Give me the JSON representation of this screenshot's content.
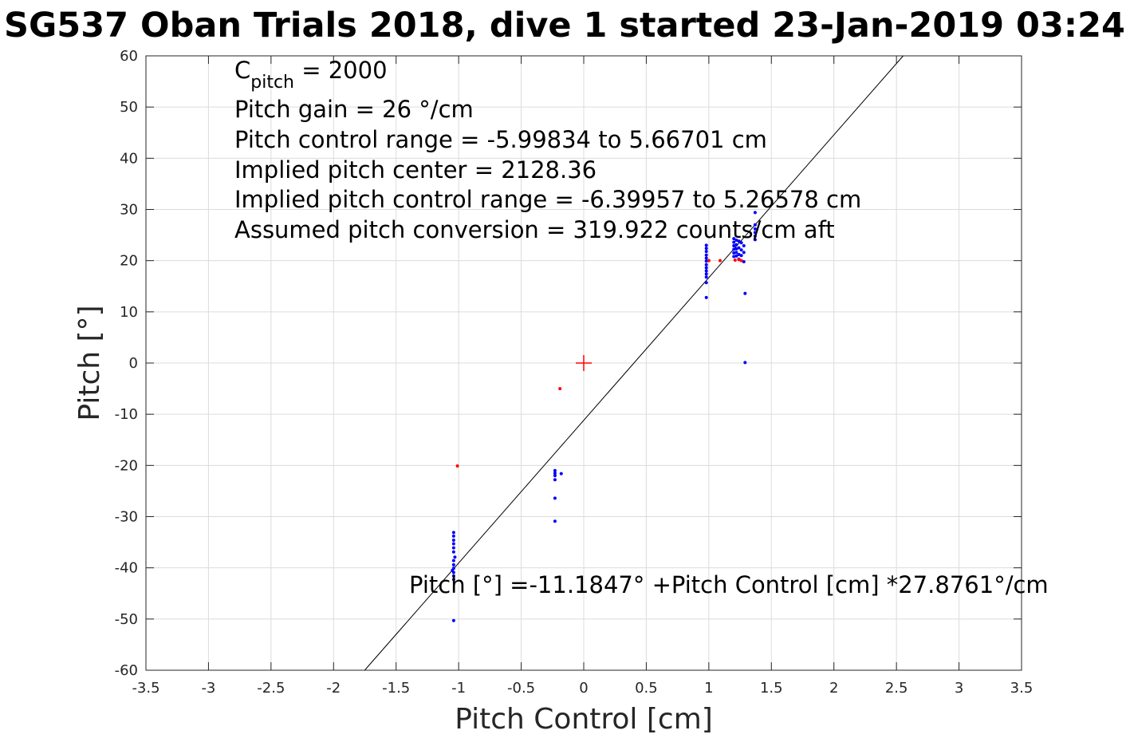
{
  "chart_data": {
    "type": "scatter",
    "title": "SG537 Oban Trials 2018, dive 1 started 23-Jan-2019 03:24",
    "xlabel": "Pitch Control [cm]",
    "ylabel": "Pitch [°]",
    "xlim": [
      -3.5,
      3.5
    ],
    "ylim": [
      -60,
      60
    ],
    "grid": true,
    "x_ticks": [
      "-3.5",
      "-3",
      "-2.5",
      "-2",
      "-1.5",
      "-1",
      "-0.5",
      "0",
      "0.5",
      "1",
      "1.5",
      "2",
      "2.5",
      "3",
      "3.5"
    ],
    "y_ticks": [
      "-60",
      "-50",
      "-40",
      "-30",
      "-20",
      "-10",
      "0",
      "10",
      "20",
      "30",
      "40",
      "50",
      "60"
    ],
    "annotations": {
      "c_pitch_main": "C",
      "c_pitch_sub": "pitch",
      "c_pitch_value": " = 2000",
      "pitch_gain": "Pitch gain = 26 °/cm",
      "control_range": "Pitch control range = -5.99834 to 5.66701 cm",
      "implied_center": "Implied pitch center = 2128.36",
      "implied_range": "Implied pitch control range = -6.39957 to 5.26578 cm",
      "conversion": "Assumed pitch conversion = 319.922 counts/cm aft",
      "fit_equation": "Pitch [°] =-11.1847° +Pitch Control [cm] *27.8761°/cm"
    },
    "fit_line": {
      "intercept": -11.1847,
      "slope": 27.8761,
      "color": "#000000"
    },
    "center_marker": {
      "x": 0,
      "y": 0,
      "color": "#ff0000"
    },
    "series": [
      {
        "color": "#0000ff",
        "points": [
          [
            -1.04,
            -33.1
          ],
          [
            -1.04,
            -33.8
          ],
          [
            -1.04,
            -34.6
          ],
          [
            -1.04,
            -35.3
          ],
          [
            -1.04,
            -36.1
          ],
          [
            -1.04,
            -36.9
          ],
          [
            -1.04,
            -38.6
          ],
          [
            -1.04,
            -39.4
          ],
          [
            -1.04,
            -40.1
          ],
          [
            -1.04,
            -40.9
          ],
          [
            -1.04,
            -41.6
          ],
          [
            -1.04,
            -42.3
          ],
          [
            -1.04,
            -50.3
          ],
          [
            -1.05,
            -40.5
          ],
          [
            -1.03,
            -37.9
          ],
          [
            -0.23,
            -21.0
          ],
          [
            -0.23,
            -21.5
          ],
          [
            -0.23,
            -22.0
          ],
          [
            -0.23,
            -22.8
          ],
          [
            -0.18,
            -21.6
          ],
          [
            -0.23,
            -26.4
          ],
          [
            -0.23,
            -30.9
          ],
          [
            0.98,
            23.0
          ],
          [
            0.98,
            22.4
          ],
          [
            0.98,
            21.8
          ],
          [
            0.98,
            21.1
          ],
          [
            0.98,
            20.5
          ],
          [
            0.98,
            19.9
          ],
          [
            0.98,
            19.2
          ],
          [
            0.98,
            18.6
          ],
          [
            0.98,
            18.0
          ],
          [
            0.98,
            17.4
          ],
          [
            0.98,
            16.8
          ],
          [
            0.98,
            15.7
          ],
          [
            0.98,
            12.8
          ],
          [
            1.2,
            24.3
          ],
          [
            1.2,
            23.6
          ],
          [
            1.2,
            22.9
          ],
          [
            1.2,
            22.2
          ],
          [
            1.2,
            21.5
          ],
          [
            1.2,
            20.8
          ],
          [
            1.22,
            24.0
          ],
          [
            1.22,
            23.1
          ],
          [
            1.22,
            22.3
          ],
          [
            1.22,
            21.6
          ],
          [
            1.22,
            20.9
          ],
          [
            1.24,
            23.8
          ],
          [
            1.24,
            22.5
          ],
          [
            1.24,
            21.2
          ],
          [
            1.24,
            20.3
          ],
          [
            1.26,
            23.5
          ],
          [
            1.26,
            22.1
          ],
          [
            1.26,
            21.0
          ],
          [
            1.28,
            22.9
          ],
          [
            1.28,
            21.6
          ],
          [
            1.28,
            19.8
          ],
          [
            1.29,
            13.6
          ],
          [
            1.29,
            0.1
          ],
          [
            1.37,
            29.4
          ],
          [
            1.37,
            27.0
          ],
          [
            1.37,
            26.2
          ],
          [
            1.37,
            25.5
          ],
          [
            1.37,
            24.8
          ],
          [
            1.37,
            24.1
          ]
        ]
      },
      {
        "color": "#ff0000",
        "points": [
          [
            -1.01,
            -20.1
          ],
          [
            -0.19,
            -5.0
          ],
          [
            1.0,
            20.0
          ],
          [
            1.09,
            20.0
          ],
          [
            1.21,
            20.1
          ],
          [
            1.24,
            20.2
          ],
          [
            1.26,
            20.0
          ]
        ]
      }
    ]
  }
}
